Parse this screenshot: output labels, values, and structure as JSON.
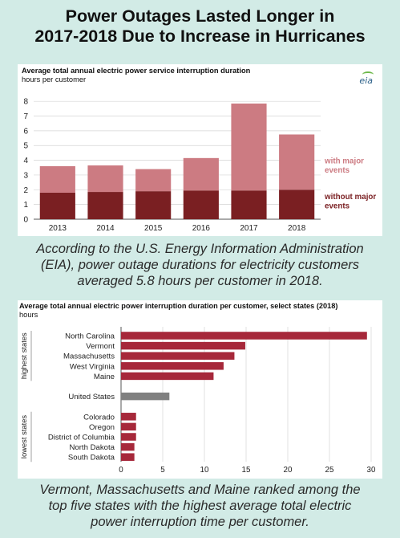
{
  "headline_line1": "Power Outages Lasted Longer in",
  "headline_line2": "2017-2018 Due to Increase in Hurricanes",
  "chart_data": [
    {
      "type": "bar",
      "stacked": true,
      "title": "Average total annual electric power service interruption duration",
      "subtitle": "hours per customer",
      "categories": [
        "2013",
        "2014",
        "2015",
        "2016",
        "2017",
        "2018"
      ],
      "series": [
        {
          "name": "without major events",
          "values": [
            1.8,
            1.85,
            1.9,
            1.95,
            1.95,
            2.0
          ],
          "color": "#7a1f22"
        },
        {
          "name": "with major events",
          "values": [
            1.8,
            1.8,
            1.5,
            2.2,
            5.9,
            3.75
          ],
          "color": "#cc7b82"
        }
      ],
      "legend_labels": [
        [
          "with major",
          "events"
        ],
        [
          "without major",
          "events"
        ]
      ],
      "yticks": [
        0,
        1,
        2,
        3,
        4,
        5,
        6,
        7,
        8
      ],
      "ylim": [
        0,
        8.5
      ],
      "grid": true
    },
    {
      "type": "bar",
      "orientation": "horizontal",
      "title": "Average total annual electric power interruption duration per customer, select states (2018)",
      "subtitle": "hours",
      "groups": [
        {
          "label": "highest states",
          "categories": [
            "North Carolina",
            "Vermont",
            "Massachusetts",
            "West Virginia",
            "Maine"
          ],
          "values": [
            29.5,
            14.9,
            13.6,
            12.3,
            11.1
          ],
          "color": "#a6283a"
        },
        {
          "label": "",
          "categories": [
            "United States"
          ],
          "values": [
            5.8
          ],
          "color": "#808080"
        },
        {
          "label": "lowest states",
          "categories": [
            "Colorado",
            "Oregon",
            "District of Columbia",
            "North Dakota",
            "South Dakota"
          ],
          "values": [
            1.8,
            1.8,
            1.8,
            1.6,
            1.6
          ],
          "color": "#a6283a"
        }
      ],
      "xticks": [
        0,
        5,
        10,
        15,
        20,
        25,
        30
      ],
      "xlim": [
        0,
        30
      ],
      "grid": true
    }
  ],
  "logo_text": "eia",
  "caption1": [
    "According to the U.S. Energy Information Administration",
    "(EIA), power outage durations for electricity customers",
    "averaged 5.8 hours per customer in 2018."
  ],
  "caption2": [
    "Vermont, Massachusetts and Maine ranked among the",
    "top five states with the highest average total electric",
    "power interruption time per customer."
  ]
}
